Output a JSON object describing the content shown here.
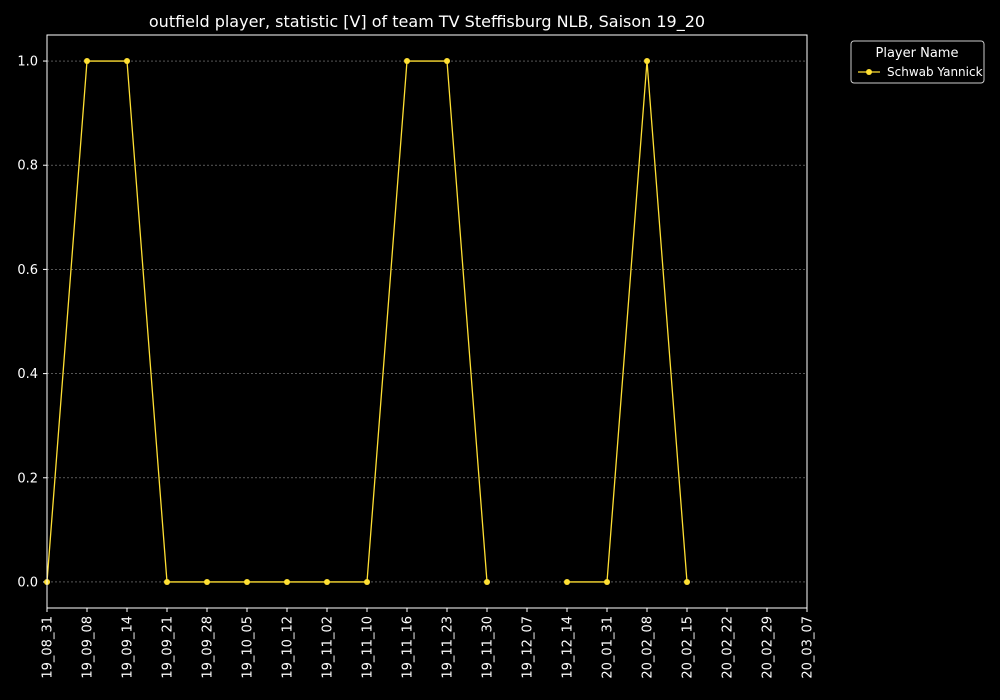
{
  "chart_data": {
    "type": "line",
    "title": "outfield player, statistic [V] of team TV Steffisburg NLB, Saison 19_20",
    "xlabel": "",
    "ylabel": "",
    "categories": [
      "19_08_31",
      "19_09_08",
      "19_09_14",
      "19_09_21",
      "19_09_28",
      "19_10_05",
      "19_10_12",
      "19_11_02",
      "19_11_10",
      "19_11_16",
      "19_11_23",
      "19_11_30",
      "19_12_07",
      "19_12_14",
      "20_01_31",
      "20_02_08",
      "20_02_15",
      "20_02_22",
      "20_02_29",
      "20_03_07"
    ],
    "ylim": [
      -0.05,
      1.05
    ],
    "yticks": [
      "0.0",
      "0.2",
      "0.4",
      "0.6",
      "0.8",
      "1.0"
    ],
    "grid": true,
    "legend_title": "Player Name",
    "legend_position": "outside-top-right",
    "background": "#000000",
    "series": [
      {
        "name": "Schwab Yannick",
        "color": "#ffe033",
        "values": [
          0,
          1,
          1,
          0,
          0,
          0,
          0,
          0,
          0,
          1,
          1,
          0,
          null,
          0,
          0,
          1,
          0,
          null,
          null,
          null
        ]
      }
    ]
  }
}
